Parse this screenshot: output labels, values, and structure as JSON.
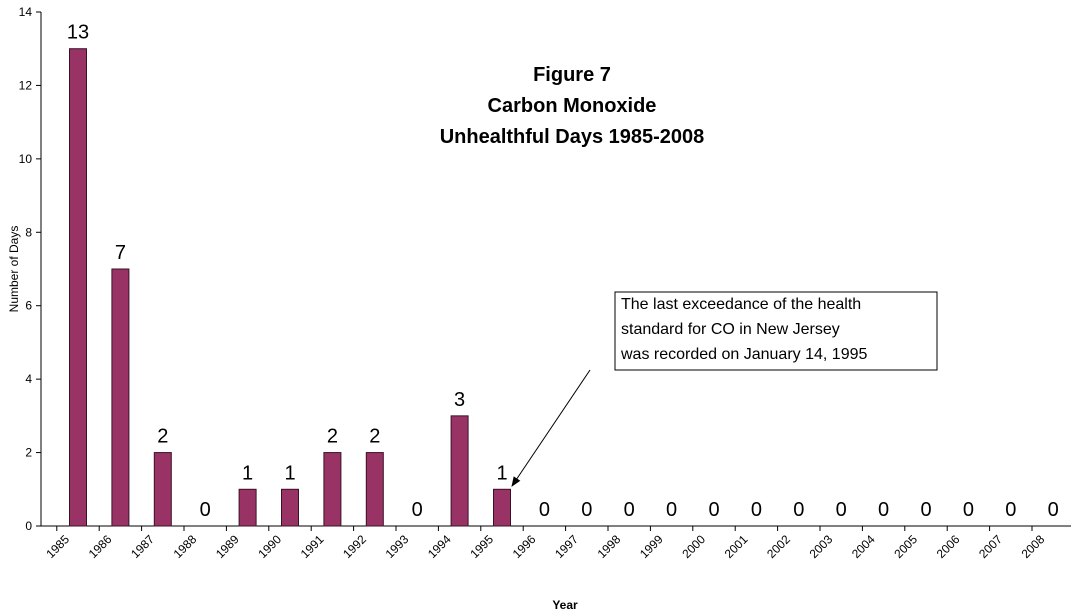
{
  "chart_data": {
    "type": "bar",
    "title": [
      "Figure 7",
      "Carbon Monoxide",
      "Unhealthful Days 1985-2008"
    ],
    "x_label": "Year",
    "y_label": "Number of Days",
    "categories": [
      "1985",
      "1986",
      "1987",
      "1988",
      "1989",
      "1990",
      "1991",
      "1992",
      "1993",
      "1994",
      "1995",
      "1996",
      "1997",
      "1998",
      "1999",
      "2000",
      "2001",
      "2002",
      "2003",
      "2004",
      "2005",
      "2006",
      "2007",
      "2008"
    ],
    "values": [
      13,
      7,
      2,
      0,
      1,
      1,
      2,
      2,
      0,
      3,
      1,
      0,
      0,
      0,
      0,
      0,
      0,
      0,
      0,
      0,
      0,
      0,
      0,
      0
    ],
    "color": "#993366",
    "ylim": [
      0,
      14
    ],
    "yticks": [
      0,
      2,
      4,
      6,
      8,
      10,
      12,
      14
    ],
    "annotation": [
      "The last exceedance of the health",
      "standard for CO in New Jersey",
      "was recorded on January 14, 1995"
    ]
  }
}
